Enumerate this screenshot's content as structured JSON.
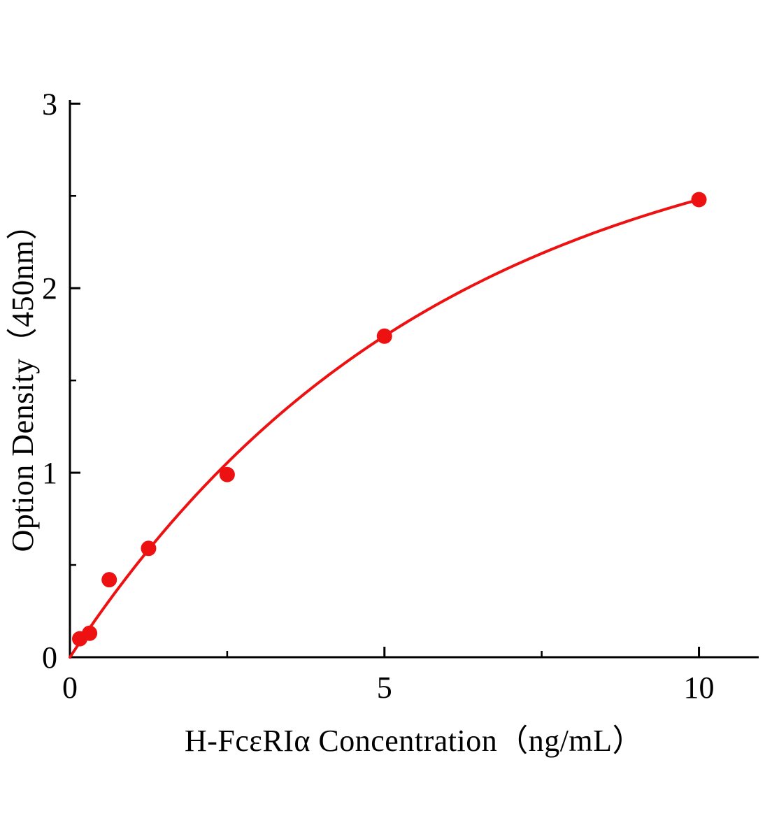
{
  "page": {
    "background": "#ffffff"
  },
  "chart_data": {
    "type": "scatter",
    "title": "",
    "xlabel": "H-FcεRIα Concentration（ng/mL）",
    "ylabel": "Option Density（450nm）",
    "x": [
      0.156,
      0.3125,
      0.625,
      1.25,
      2.5,
      5,
      10
    ],
    "y": [
      0.1,
      0.13,
      0.42,
      0.59,
      0.99,
      1.74,
      2.48
    ],
    "xlim": [
      0,
      10.95
    ],
    "ylim": [
      0,
      3.02
    ],
    "xticks": [
      0,
      5,
      10
    ],
    "yticks": [
      0,
      1,
      2,
      3
    ],
    "xminor": [
      2.5,
      7.5
    ],
    "yminor": [
      0.5,
      1.5,
      2.5
    ],
    "grid": false,
    "legend": null,
    "marker_color": "#ee1111",
    "line_color": "#ee1111",
    "axis_color": "#000000",
    "marker_radius": 11,
    "fit_curve": {
      "type": "exp_saturation",
      "A": 3.028,
      "k": 0.171,
      "x_start": 0,
      "x_end": 10
    }
  }
}
